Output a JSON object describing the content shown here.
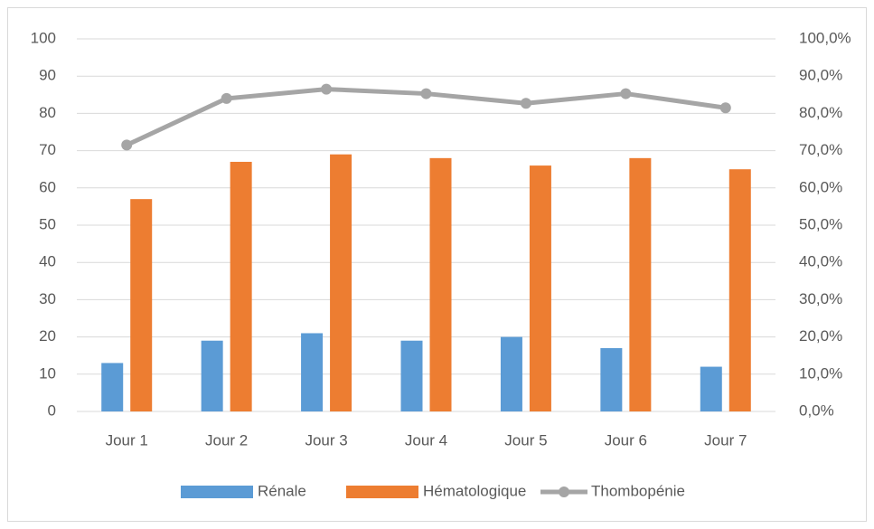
{
  "chart_data": {
    "type": "bar",
    "categories": [
      "Jour 1",
      "Jour 2",
      "Jour 3",
      "Jour 4",
      "Jour 5",
      "Jour 6",
      "Jour 7"
    ],
    "series": [
      {
        "name": "Rénale",
        "type": "bar",
        "color": "#5b9bd5",
        "values": [
          13,
          19,
          21,
          19,
          20,
          17,
          12
        ]
      },
      {
        "name": "Hématologique",
        "type": "bar",
        "color": "#ed7d31",
        "values": [
          57,
          67,
          69,
          68,
          66,
          68,
          65
        ]
      },
      {
        "name": "Thombopénie",
        "type": "line",
        "axis": "y2",
        "color": "#a5a5a5",
        "values": [
          71.5,
          84,
          86.5,
          85.3,
          82.7,
          85.3,
          81.5
        ]
      }
    ],
    "ylim": [
      0,
      100
    ],
    "yticks": [
      0,
      10,
      20,
      30,
      40,
      50,
      60,
      70,
      80,
      90,
      100
    ],
    "y2lim": [
      0,
      100
    ],
    "y2ticks": [
      {
        "value": 0,
        "label": "0,0%"
      },
      {
        "value": 10,
        "label": "10,0%"
      },
      {
        "value": 20,
        "label": "20,0%"
      },
      {
        "value": 30,
        "label": "30,0%"
      },
      {
        "value": 40,
        "label": "40,0%"
      },
      {
        "value": 50,
        "label": "50,0%"
      },
      {
        "value": 60,
        "label": "60,0%"
      },
      {
        "value": 70,
        "label": "70,0%"
      },
      {
        "value": 80,
        "label": "80,0%"
      },
      {
        "value": 90,
        "label": "90,0%"
      },
      {
        "value": 100,
        "label": "100,0%"
      }
    ],
    "grid": true,
    "legend": "bottom"
  }
}
